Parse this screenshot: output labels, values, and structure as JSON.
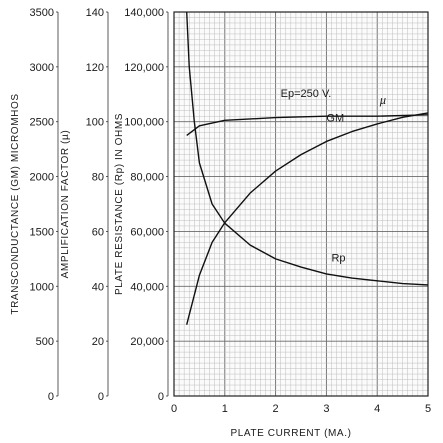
{
  "chart_data": {
    "type": "line",
    "title": "",
    "annotation": "Ep=250 V.",
    "x": {
      "label": "PLATE CURRENT (MA.)",
      "range": [
        0,
        5
      ],
      "ticks": [
        0,
        1,
        2,
        3,
        4,
        5
      ],
      "tick_labels": [
        "0",
        "1",
        "2",
        "3",
        "4",
        "5"
      ]
    },
    "y_axes": [
      {
        "key": "gm",
        "label": "TRANSCONDUCTANCE (GM) MICROMHOS",
        "range": [
          0,
          3500
        ],
        "ticks": [
          0,
          500,
          1000,
          1500,
          2000,
          2500,
          3000,
          3500
        ],
        "tick_labels": [
          "0",
          "500",
          "1000",
          "1500",
          "2000",
          "2500",
          "3000",
          "3500"
        ]
      },
      {
        "key": "mu",
        "label": "AMPLIFICATION FACTOR (µ)",
        "range": [
          0,
          140
        ],
        "ticks": [
          0,
          20,
          40,
          60,
          80,
          100,
          120,
          140
        ],
        "tick_labels": [
          "0",
          "20",
          "40",
          "60",
          "80",
          "100",
          "120",
          "140"
        ]
      },
      {
        "key": "rp",
        "label": "PLATE RESISTANCE (Rp) IN OHMS",
        "range": [
          0,
          140000
        ],
        "ticks": [
          0,
          20000,
          40000,
          60000,
          80000,
          100000,
          120000,
          140000
        ],
        "tick_labels": [
          "0",
          "20,000",
          "40,000",
          "60,000",
          "80,000",
          "100,000",
          "120,000",
          "140,000"
        ]
      }
    ],
    "series": [
      {
        "name": "µ",
        "axis": "mu",
        "x": [
          0.25,
          0.5,
          1.0,
          2.0,
          3.0,
          4.0,
          5.0
        ],
        "y": [
          95,
          98.5,
          100.5,
          101.5,
          102,
          102,
          102.5
        ]
      },
      {
        "name": "GM",
        "axis": "gm",
        "x": [
          0.25,
          0.5,
          0.75,
          1.0,
          1.5,
          2.0,
          2.5,
          3.0,
          3.5,
          4.0,
          4.5,
          5.0
        ],
        "y": [
          650,
          1100,
          1400,
          1580,
          1850,
          2050,
          2200,
          2320,
          2410,
          2480,
          2540,
          2580
        ]
      },
      {
        "name": "Rp",
        "axis": "rp",
        "x": [
          0.25,
          0.3,
          0.4,
          0.5,
          0.75,
          1.0,
          1.5,
          2.0,
          2.5,
          3.0,
          3.5,
          4.0,
          4.5,
          5.0
        ],
        "y": [
          140000,
          120000,
          100000,
          85000,
          70000,
          63000,
          55000,
          50000,
          47000,
          44500,
          43000,
          42000,
          41000,
          40500
        ]
      }
    ],
    "grid": true
  }
}
